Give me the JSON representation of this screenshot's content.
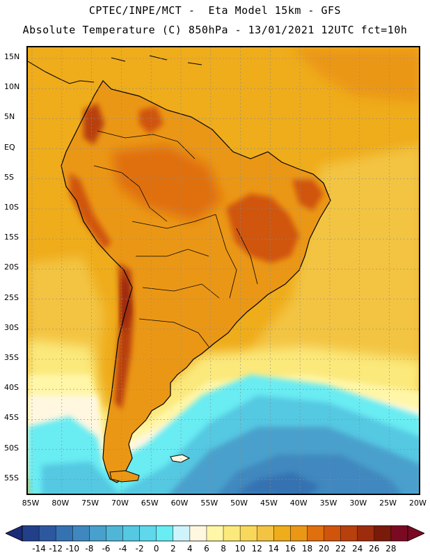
{
  "header": {
    "line1": "CPTEC/INPE/MCT -  Eta Model 15km - GFS",
    "line2": "Absolute Temperature (C) 850hPa - 13/01/2021 12UTC fct=10h"
  },
  "axes": {
    "lat_labels": [
      "15N",
      "10N",
      "5N",
      "EQ",
      "5S",
      "10S",
      "15S",
      "20S",
      "25S",
      "30S",
      "35S",
      "40S",
      "45S",
      "50S",
      "55S"
    ],
    "lon_labels": [
      "85W",
      "80W",
      "75W",
      "70W",
      "65W",
      "60W",
      "55W",
      "50W",
      "45W",
      "40W",
      "35W",
      "30W",
      "25W",
      "20W"
    ]
  },
  "colorbar": {
    "labels": [
      "-14",
      "-12",
      "-10",
      "-8",
      "-6",
      "-4",
      "-2",
      "0",
      "2",
      "4",
      "6",
      "8",
      "10",
      "12",
      "14",
      "16",
      "18",
      "20",
      "22",
      "24",
      "26",
      "28"
    ],
    "colors": [
      "#22408a",
      "#2d58a0",
      "#3572b2",
      "#3f88bf",
      "#48a0cc",
      "#4fb6d8",
      "#55c8e2",
      "#5ed8ea",
      "#69ecf2",
      "#cff3fa",
      "#fff7e0",
      "#fff6a8",
      "#fbe97c",
      "#f8d85a",
      "#f3c443",
      "#efac1b",
      "#eb9716",
      "#e06f0e",
      "#d0540c",
      "#b8400c",
      "#9d2c0c",
      "#7a1a0a",
      "#7a0a22"
    ],
    "lower_arrow_color": "#1c2a78",
    "upper_arrow_color": "#7a0a22"
  },
  "map": {
    "ocean_tropical_color": "#efac1b",
    "ocean_subtropical_color": "#f3c443",
    "land_warm_color": "#eb9716",
    "land_hot_color": "#d0540c",
    "andes_hot_color": "#b8400c",
    "cold_core_color": "#3572b2"
  }
}
